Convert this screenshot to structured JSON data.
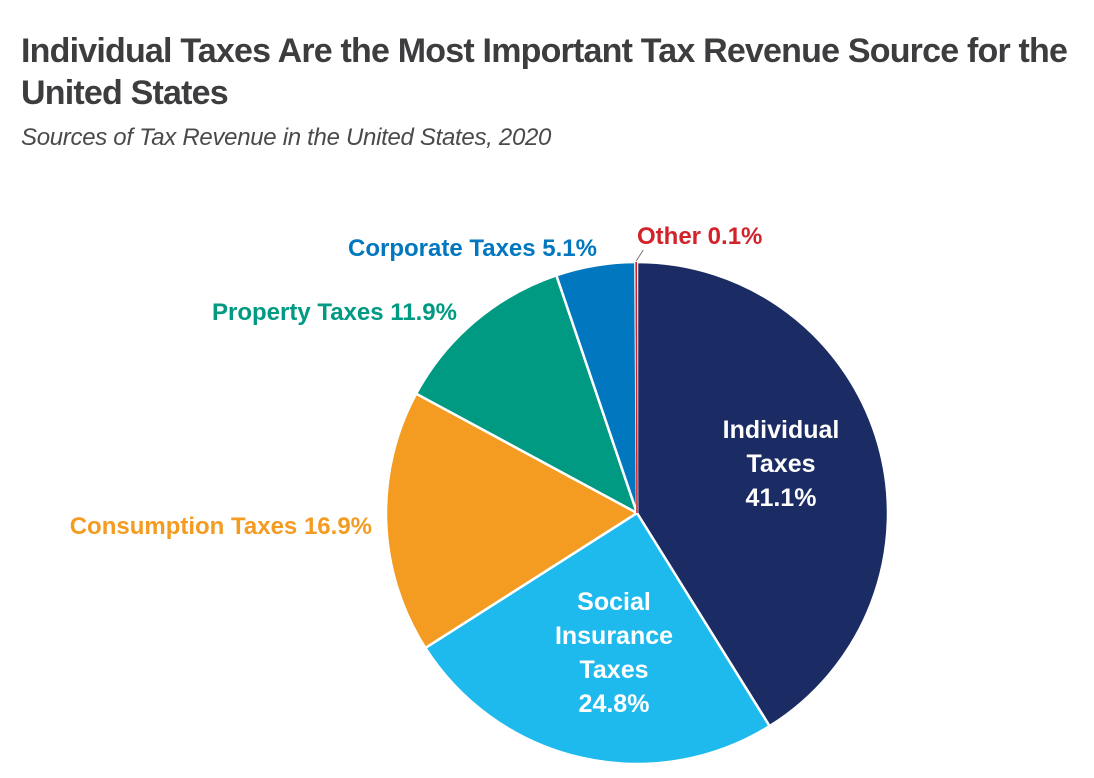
{
  "chart_data": {
    "type": "pie",
    "title": "Individual Taxes Are the Most Important Tax Revenue Source for the United States",
    "subtitle": "Sources of Tax Revenue in the United States, 2020",
    "start": "12 o'clock",
    "direction": "clockwise",
    "slices": [
      {
        "name": "Individual Taxes",
        "value": 41.1,
        "label": "41.1%",
        "color": "#1b2b63",
        "label_lines": [
          "Individual",
          "Taxes",
          "41.1%"
        ],
        "label_position": "inside"
      },
      {
        "name": "Social Insurance Taxes",
        "value": 24.8,
        "label": "24.8%",
        "color": "#1fbaed",
        "label_lines": [
          "Social",
          "Insurance",
          "Taxes",
          "24.8%"
        ],
        "label_position": "inside"
      },
      {
        "name": "Consumption Taxes",
        "value": 16.9,
        "label": "16.9%",
        "color": "#f49b21",
        "label_lines": [
          "Consumption Taxes 16.9%"
        ],
        "label_position": "outside"
      },
      {
        "name": "Property Taxes",
        "value": 11.9,
        "label": "11.9%",
        "color": "#009a83",
        "label_lines": [
          "Property Taxes 11.9%"
        ],
        "label_position": "outside"
      },
      {
        "name": "Corporate Taxes",
        "value": 5.1,
        "label": "5.1%",
        "color": "#0077bf",
        "label_lines": [
          "Corporate Taxes 5.1%"
        ],
        "label_position": "outside"
      },
      {
        "name": "Other",
        "value": 0.1,
        "label": "0.1%",
        "color": "#d2232a",
        "label_lines": [
          "Other 0.1%"
        ],
        "label_position": "outside"
      }
    ]
  }
}
